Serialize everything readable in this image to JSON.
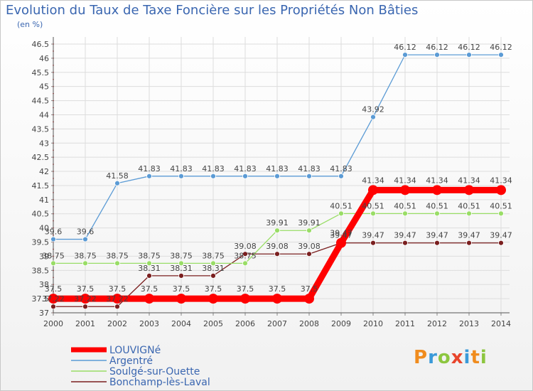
{
  "header": {
    "title": "Evolution du Taux de Taxe Foncière sur les Propriétés Non Bâties",
    "unit": "(en %)"
  },
  "logo": {
    "text": "Proxiti",
    "letters": [
      "P",
      "r",
      "o",
      "x",
      "i",
      "t",
      "i"
    ]
  },
  "colors": {
    "title": "#3a66b0",
    "grid": "#dddddd",
    "axis": "#555555"
  },
  "chart_data": {
    "type": "line",
    "title": "Evolution du Taux de Taxe Foncière sur les Propriétés Non Bâties",
    "ylabel": "(en %)",
    "xlabel": "",
    "x": [
      "2000",
      "2001",
      "2002",
      "2003",
      "2004",
      "2005",
      "2006",
      "2007",
      "2008",
      "2009",
      "2010",
      "2011",
      "2012",
      "2013",
      "2014"
    ],
    "yticks": [
      "37",
      "37.5",
      "38",
      "38.5",
      "39",
      "39.5",
      "40",
      "40.5",
      "41",
      "41.5",
      "42",
      "42.5",
      "43",
      "43.5",
      "44",
      "44.5",
      "45",
      "45.5",
      "46",
      "46.5"
    ],
    "ylim": [
      37,
      46.5
    ],
    "grid": true,
    "legend_position": "bottom-left",
    "series": [
      {
        "name": "LOUVIGNé",
        "color": "#ff0000",
        "width": 9,
        "marker": 7,
        "values": [
          37.5,
          37.5,
          37.5,
          37.5,
          37.5,
          37.5,
          37.5,
          37.5,
          37.5,
          39.47,
          41.34,
          41.34,
          41.34,
          41.34,
          41.34
        ],
        "labels": [
          "37.5",
          "37.5",
          "37.5",
          "37.5",
          "37.5",
          "37.5",
          "37.5",
          "37.5",
          "37.5",
          "39.47",
          "41.34",
          "41.34",
          "41.34",
          "41.34",
          "41.34"
        ]
      },
      {
        "name": "Argentré",
        "color": "#5b9bd5",
        "width": 1.3,
        "marker": 3.5,
        "values": [
          39.6,
          39.6,
          41.58,
          41.83,
          41.83,
          41.83,
          41.83,
          41.83,
          41.83,
          41.83,
          43.92,
          46.12,
          46.12,
          46.12,
          46.12
        ],
        "labels": [
          "39.6",
          "39.6",
          "41.58",
          "41.83",
          "41.83",
          "41.83",
          "41.83",
          "41.83",
          "41.83",
          "41.83",
          "43.92",
          "46.12",
          "46.12",
          "46.12",
          "46.12"
        ]
      },
      {
        "name": "Soulgé-sur-Ouette",
        "color": "#99dd66",
        "width": 1.3,
        "marker": 3.5,
        "values": [
          38.75,
          38.75,
          38.75,
          38.75,
          38.75,
          38.75,
          38.75,
          39.91,
          39.91,
          40.51,
          40.51,
          40.51,
          40.51,
          40.51,
          40.51
        ],
        "labels": [
          "38.75",
          "38.75",
          "38.75",
          "38.75",
          "38.75",
          "38.75",
          "38.75",
          "39.91",
          "39.91",
          "40.51",
          "40.51",
          "40.51",
          "40.51",
          "40.51",
          "40.51"
        ]
      },
      {
        "name": "Bonchamp-lès-Laval",
        "color": "#7a1f1f",
        "width": 1.3,
        "marker": 3.5,
        "values": [
          37.22,
          37.22,
          37.22,
          38.31,
          38.31,
          38.31,
          39.08,
          39.08,
          39.08,
          39.47,
          39.47,
          39.47,
          39.47,
          39.47,
          39.47
        ],
        "labels": [
          "37.22",
          "37.22",
          "37.22",
          "38.31",
          "38.31",
          "38.31",
          "39.08",
          "39.08",
          "39.08",
          "39.47",
          "39.47",
          "39.47",
          "39.47",
          "39.47",
          "39.47"
        ]
      }
    ]
  }
}
